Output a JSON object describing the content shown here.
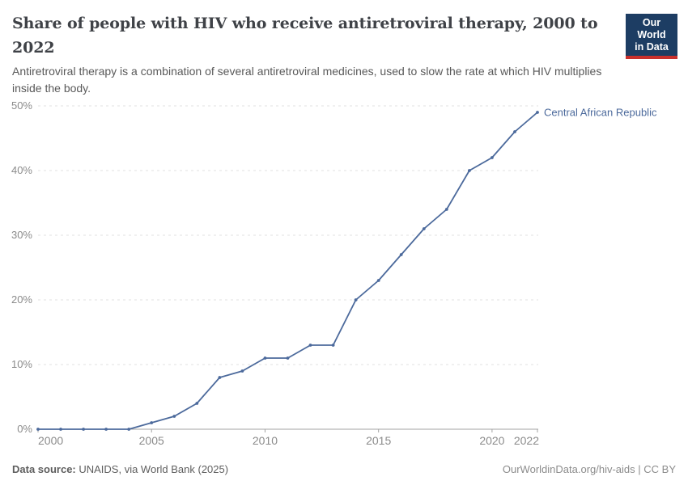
{
  "header": {
    "title_line1": "Share of people with HIV who receive antiretroviral therapy, 2000 to",
    "title_line2": "2022",
    "subtitle_line1": "Antiretroviral therapy is a combination of several antiretroviral medicines, used to slow the rate at which HIV multiplies",
    "subtitle_line2": "inside the body.",
    "logo": {
      "line1": "Our World",
      "line2": "in Data",
      "bg": "#1d3d63",
      "bar": "#c9302c"
    }
  },
  "chart_data": {
    "type": "line",
    "title": "Share of people with HIV who receive antiretroviral therapy, 2000 to 2022",
    "subtitle": "Antiretroviral therapy is a combination of several antiretroviral medicines, used to slow the rate at which HIV multiplies inside the body.",
    "x": [
      2000,
      2001,
      2002,
      2003,
      2004,
      2005,
      2006,
      2007,
      2008,
      2009,
      2010,
      2011,
      2012,
      2013,
      2014,
      2015,
      2016,
      2017,
      2018,
      2019,
      2020,
      2021,
      2022
    ],
    "series": [
      {
        "name": "Central African Republic",
        "color": "#4c6a9c",
        "values": [
          0,
          0,
          0,
          0,
          0,
          1,
          2,
          4,
          8,
          9,
          11,
          11,
          13,
          13,
          20,
          23,
          27,
          31,
          34,
          40,
          42,
          46,
          49
        ]
      }
    ],
    "x_ticks": [
      2000,
      2005,
      2010,
      2015,
      2020,
      2022
    ],
    "y_ticks": [
      0,
      10,
      20,
      30,
      40,
      50
    ],
    "y_unit": "%",
    "xlim": [
      2000,
      2022
    ],
    "ylim": [
      0,
      50
    ],
    "grid": "horizontal-dashed",
    "legend": "series-end-label"
  },
  "footer": {
    "source_label": "Data source:",
    "source_text": " UNAIDS, via World Bank (2025)",
    "link": "OurWorldinData.org/hiv-aids | CC BY"
  },
  "colors": {
    "series": "#4c6a9c",
    "grid": "#e2e2e2",
    "axis": "#a3a3a3",
    "tick_label": "#8b8b8b",
    "title": "#3f4247",
    "subtitle": "#595959",
    "footer_left": "#5e5e5e",
    "footer_right": "#8c8c8c"
  }
}
